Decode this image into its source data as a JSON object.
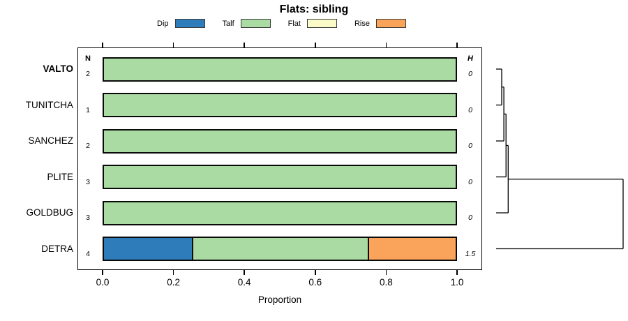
{
  "chart_data": {
    "type": "bar",
    "orientation": "horizontal",
    "stacked": true,
    "title": "Flats: sibling",
    "categories": [
      "VALTO",
      "TUNITCHA",
      "SANCHEZ",
      "PLITE",
      "GOLDBUG",
      "DETRA"
    ],
    "emphasized_category": "VALTO",
    "series": [
      {
        "name": "Dip",
        "color": "#2E7CB9",
        "values": [
          0,
          0,
          0,
          0,
          0,
          0.25
        ]
      },
      {
        "name": "Talf",
        "color": "#AADBA3",
        "values": [
          1,
          1,
          1,
          1,
          1,
          0.5
        ]
      },
      {
        "name": "Flat",
        "color": "#FBFBC9",
        "values": [
          0,
          0,
          0,
          0,
          0,
          0
        ]
      },
      {
        "name": "Rise",
        "color": "#F9A45A",
        "values": [
          0,
          0,
          0,
          0,
          0,
          0.25
        ]
      }
    ],
    "n_header": "N",
    "h_header": "H",
    "n_values": [
      "2",
      "1",
      "2",
      "3",
      "3",
      "4"
    ],
    "h_values": [
      "0",
      "0",
      "0",
      "0",
      "0",
      "1.5"
    ],
    "xlabel": "Proportion",
    "xlim": [
      0,
      1
    ],
    "x_ticks": [
      "0.0",
      "0.2",
      "0.4",
      "0.6",
      "0.8",
      "1.0"
    ],
    "legend_position": "top",
    "grid": false,
    "dendrogram": {
      "axis_label": "H",
      "max_height": 1.5,
      "leaves": [
        "L0",
        "L1",
        "L2",
        "L3",
        "L4",
        "L5"
      ],
      "merges": [
        {
          "a": "L0",
          "b": "L1",
          "height": 0
        },
        {
          "a": "M0",
          "b": "L2",
          "height": 0
        },
        {
          "a": "M1",
          "b": "L3",
          "height": 0
        },
        {
          "a": "M2",
          "b": "L4",
          "height": 0
        },
        {
          "a": "M3",
          "b": "L5",
          "height": 1.5
        }
      ]
    }
  }
}
